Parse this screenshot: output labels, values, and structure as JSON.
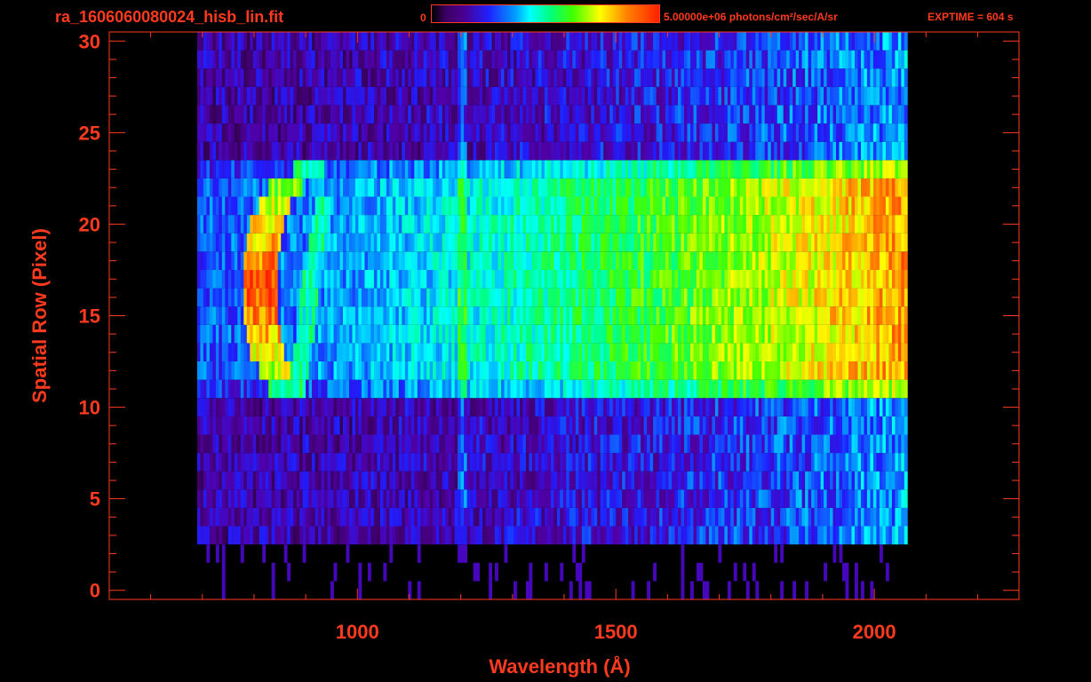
{
  "header": {
    "file_title": "ra_1606060080024_hisb_lin.fit",
    "colorbar_min": "0",
    "colorbar_max": "5.00000e+06 photons/cm²/sec/A/sr",
    "exptime": "EXPTIME = 604 s"
  },
  "colors": {
    "axis": "#ff3a1e",
    "background": "#000000"
  },
  "chart_data": {
    "type": "heatmap",
    "colormap": "rainbow (black-purple-blue-cyan-green-yellow-red)",
    "color_range": [
      0,
      5000000
    ],
    "color_units": "photons/cm²/sec/A/sr",
    "xlabel": "Wavelength (Å)",
    "ylabel": "Spatial Row (Pixel)",
    "xlim": [
      520,
      2280
    ],
    "ylim": [
      -0.5,
      30.5
    ],
    "x_ticks": [
      1000,
      1500,
      2000
    ],
    "y_ticks": [
      0,
      5,
      10,
      15,
      20,
      25,
      30
    ],
    "grid": false,
    "data_extent_x": [
      690,
      2060
    ],
    "data_extent_rows": [
      0,
      30
    ],
    "slit_rows": [
      11,
      23
    ],
    "features": [
      {
        "name": "bright crescent emission",
        "x_range": [
          790,
          890
        ],
        "rows": [
          11,
          22
        ],
        "level": 0.95
      },
      {
        "name": "emission band",
        "x": 1200,
        "rows": [
          10,
          23
        ],
        "level": 0.55
      },
      {
        "name": "continuum rising toward red",
        "x_range": [
          1500,
          2060
        ],
        "rows": [
          11,
          23
        ],
        "level": 0.9
      }
    ]
  }
}
